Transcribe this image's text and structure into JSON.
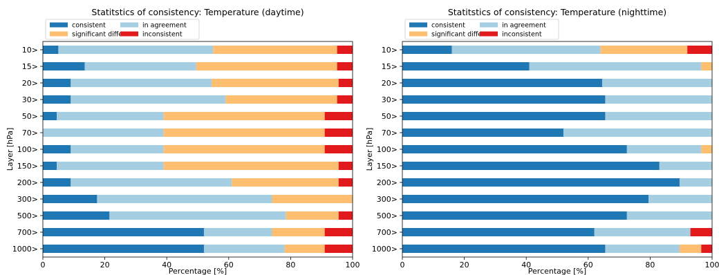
{
  "colors": {
    "consistent": "#1f77b4",
    "in_agreement": "#a6cee3",
    "significant_different": "#fdbf6f",
    "inconsistent": "#e31a1c"
  },
  "chart_data": [
    {
      "type": "bar",
      "orientation": "horizontal",
      "stacked": true,
      "title": "Statitstics of consistency: Temperature (daytime)",
      "xlabel": "Percentage [%]",
      "ylabel": "Layer [hPa]",
      "xlim": [
        0,
        100
      ],
      "xticks": [
        "0",
        "20",
        "40",
        "60",
        "80",
        "100"
      ],
      "categories": [
        "10>",
        "15>",
        "20>",
        "30>",
        "50>",
        "70>",
        "100>",
        "150>",
        "200>",
        "300>",
        "500>",
        "700>",
        "1000>"
      ],
      "series": [
        {
          "name": "consistent",
          "color": "#1f77b4",
          "values": [
            5,
            13.5,
            9,
            9,
            4.5,
            0,
            9,
            4.5,
            9,
            17.5,
            21.5,
            52,
            52
          ]
        },
        {
          "name": "in agreement",
          "color": "#a6cee3",
          "values": [
            50,
            36,
            45.5,
            50,
            34.5,
            39,
            30,
            34.5,
            52,
            56.5,
            57,
            22,
            26
          ]
        },
        {
          "name": "significant different",
          "color": "#fdbf6f",
          "values": [
            40,
            45.5,
            41,
            36,
            52,
            52,
            52,
            56.5,
            34.5,
            26,
            17,
            17,
            13
          ]
        },
        {
          "name": "inconsistent",
          "color": "#e31a1c",
          "values": [
            5,
            5,
            4.5,
            5,
            9,
            9,
            9,
            4.5,
            4.5,
            0,
            4.5,
            9,
            9
          ]
        }
      ],
      "legend": {
        "position": "top-left",
        "columns": 2
      }
    },
    {
      "type": "bar",
      "orientation": "horizontal",
      "stacked": true,
      "title": "Statitstics of consistency: Temperature (nighttime)",
      "xlabel": "Percentage [%]",
      "ylabel": "Layer [hPa]",
      "xlim": [
        0,
        100
      ],
      "xticks": [
        "0",
        "20",
        "40",
        "60",
        "80",
        "100"
      ],
      "categories": [
        "10>",
        "15>",
        "20>",
        "30>",
        "50>",
        "70>",
        "100>",
        "150>",
        "200>",
        "300>",
        "500>",
        "700>",
        "1000>"
      ],
      "series": [
        {
          "name": "consistent",
          "color": "#1f77b4",
          "values": [
            16,
            41,
            64.5,
            65.5,
            65.5,
            52,
            72.5,
            83,
            89.5,
            79.5,
            72.5,
            62,
            65.5
          ]
        },
        {
          "name": "in agreement",
          "color": "#a6cee3",
          "values": [
            48,
            55.5,
            35.5,
            34.5,
            34.5,
            48,
            24,
            17,
            10.5,
            20.5,
            27.5,
            31,
            24
          ]
        },
        {
          "name": "significant different",
          "color": "#fdbf6f",
          "values": [
            28,
            3.5,
            0,
            0,
            0,
            0,
            3.5,
            0,
            0,
            0,
            0,
            0,
            7
          ]
        },
        {
          "name": "inconsistent",
          "color": "#e31a1c",
          "values": [
            8,
            0,
            0,
            0,
            0,
            0,
            0,
            0,
            0,
            0,
            0,
            7,
            3.5
          ]
        }
      ],
      "legend": {
        "position": "top-left",
        "columns": 2
      }
    }
  ]
}
